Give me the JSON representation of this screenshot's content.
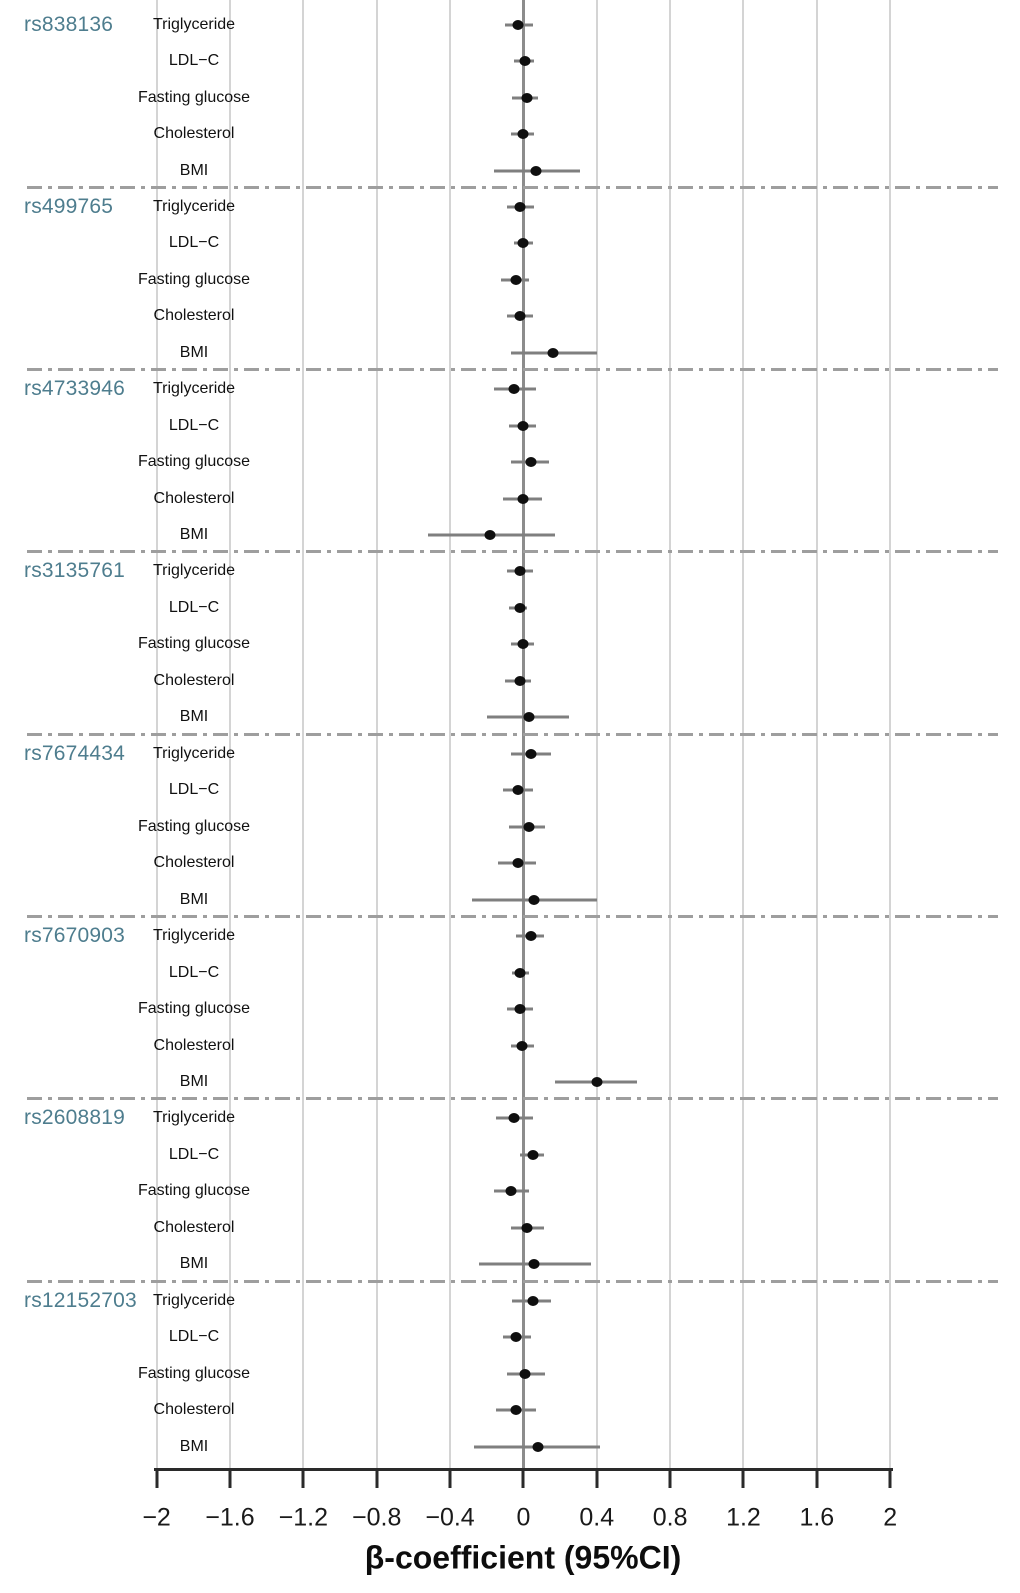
{
  "figure_title": "",
  "chart_data": {
    "type": "forest",
    "xlabel": "β-coefficient (95%CI)",
    "xlim": [
      -2,
      2
    ],
    "x_ticks": [
      -2,
      -1.6,
      -1.2,
      -0.8,
      -0.4,
      0,
      0.4,
      0.8,
      1.2,
      1.6,
      2
    ],
    "x_tick_labels": [
      "−2",
      "−1.6",
      "−1.2",
      "−0.8",
      "−0.4",
      "0",
      "0.4",
      "0.8",
      "1.2",
      "1.6",
      "2"
    ],
    "grid": "vertical-gridlines-at-every-tick",
    "zero_reference_line": 0,
    "traits_order": [
      "Triglyceride",
      "LDL−C",
      "Fasting glucose",
      "Cholesterol",
      "BMI"
    ],
    "groups": [
      {
        "snp": "rs838136",
        "rows": [
          {
            "trait": "Triglyceride",
            "beta": -0.03,
            "ci": [
              -0.1,
              0.05
            ]
          },
          {
            "trait": "LDL−C",
            "beta": 0.01,
            "ci": [
              -0.05,
              0.06
            ]
          },
          {
            "trait": "Fasting glucose",
            "beta": 0.02,
            "ci": [
              -0.06,
              0.08
            ]
          },
          {
            "trait": "Cholesterol",
            "beta": 0.0,
            "ci": [
              -0.07,
              0.06
            ]
          },
          {
            "trait": "BMI",
            "beta": 0.07,
            "ci": [
              -0.16,
              0.31
            ]
          }
        ]
      },
      {
        "snp": "rs499765",
        "rows": [
          {
            "trait": "Triglyceride",
            "beta": -0.02,
            "ci": [
              -0.09,
              0.06
            ]
          },
          {
            "trait": "LDL−C",
            "beta": 0.0,
            "ci": [
              -0.05,
              0.05
            ]
          },
          {
            "trait": "Fasting glucose",
            "beta": -0.04,
            "ci": [
              -0.12,
              0.03
            ]
          },
          {
            "trait": "Cholesterol",
            "beta": -0.02,
            "ci": [
              -0.09,
              0.05
            ]
          },
          {
            "trait": "BMI",
            "beta": 0.16,
            "ci": [
              -0.07,
              0.4
            ]
          }
        ]
      },
      {
        "snp": "rs4733946",
        "rows": [
          {
            "trait": "Triglyceride",
            "beta": -0.05,
            "ci": [
              -0.16,
              0.07
            ]
          },
          {
            "trait": "LDL−C",
            "beta": 0.0,
            "ci": [
              -0.08,
              0.07
            ]
          },
          {
            "trait": "Fasting glucose",
            "beta": 0.04,
            "ci": [
              -0.07,
              0.14
            ]
          },
          {
            "trait": "Cholesterol",
            "beta": 0.0,
            "ci": [
              -0.11,
              0.1
            ]
          },
          {
            "trait": "BMI",
            "beta": -0.18,
            "ci": [
              -0.52,
              0.17
            ]
          }
        ]
      },
      {
        "snp": "rs3135761",
        "rows": [
          {
            "trait": "Triglyceride",
            "beta": -0.02,
            "ci": [
              -0.09,
              0.05
            ]
          },
          {
            "trait": "LDL−C",
            "beta": -0.02,
            "ci": [
              -0.08,
              0.02
            ]
          },
          {
            "trait": "Fasting glucose",
            "beta": 0.0,
            "ci": [
              -0.07,
              0.06
            ]
          },
          {
            "trait": "Cholesterol",
            "beta": -0.02,
            "ci": [
              -0.1,
              0.04
            ]
          },
          {
            "trait": "BMI",
            "beta": 0.03,
            "ci": [
              -0.2,
              0.25
            ]
          }
        ]
      },
      {
        "snp": "rs7674434",
        "rows": [
          {
            "trait": "Triglyceride",
            "beta": 0.04,
            "ci": [
              -0.07,
              0.15
            ]
          },
          {
            "trait": "LDL−C",
            "beta": -0.03,
            "ci": [
              -0.11,
              0.05
            ]
          },
          {
            "trait": "Fasting glucose",
            "beta": 0.03,
            "ci": [
              -0.08,
              0.12
            ]
          },
          {
            "trait": "Cholesterol",
            "beta": -0.03,
            "ci": [
              -0.14,
              0.07
            ]
          },
          {
            "trait": "BMI",
            "beta": 0.06,
            "ci": [
              -0.28,
              0.4
            ]
          }
        ]
      },
      {
        "snp": "rs7670903",
        "rows": [
          {
            "trait": "Triglyceride",
            "beta": 0.04,
            "ci": [
              -0.04,
              0.11
            ]
          },
          {
            "trait": "LDL−C",
            "beta": -0.02,
            "ci": [
              -0.06,
              0.03
            ]
          },
          {
            "trait": "Fasting glucose",
            "beta": -0.02,
            "ci": [
              -0.09,
              0.05
            ]
          },
          {
            "trait": "Cholesterol",
            "beta": -0.01,
            "ci": [
              -0.07,
              0.06
            ]
          },
          {
            "trait": "BMI",
            "beta": 0.4,
            "ci": [
              0.17,
              0.62
            ]
          }
        ]
      },
      {
        "snp": "rs2608819",
        "rows": [
          {
            "trait": "Triglyceride",
            "beta": -0.05,
            "ci": [
              -0.15,
              0.05
            ]
          },
          {
            "trait": "LDL−C",
            "beta": 0.05,
            "ci": [
              -0.02,
              0.11
            ]
          },
          {
            "trait": "Fasting glucose",
            "beta": -0.07,
            "ci": [
              -0.16,
              0.03
            ]
          },
          {
            "trait": "Cholesterol",
            "beta": 0.02,
            "ci": [
              -0.07,
              0.11
            ]
          },
          {
            "trait": "BMI",
            "beta": 0.06,
            "ci": [
              -0.24,
              0.37
            ]
          }
        ]
      },
      {
        "snp": "rs12152703",
        "rows": [
          {
            "trait": "Triglyceride",
            "beta": 0.05,
            "ci": [
              -0.06,
              0.15
            ]
          },
          {
            "trait": "LDL−C",
            "beta": -0.04,
            "ci": [
              -0.11,
              0.04
            ]
          },
          {
            "trait": "Fasting glucose",
            "beta": 0.01,
            "ci": [
              -0.09,
              0.12
            ]
          },
          {
            "trait": "Cholesterol",
            "beta": -0.04,
            "ci": [
              -0.15,
              0.07
            ]
          },
          {
            "trait": "BMI",
            "beta": 0.08,
            "ci": [
              -0.27,
              0.42
            ]
          }
        ]
      }
    ],
    "colors": {
      "snp_label": "#4e7d8e",
      "trait_label": "#111111",
      "point": "#0f0f0f",
      "ci_line": "#7f7f7f",
      "zero_line": "#8c8c8c",
      "gridline": "#d4d4d4",
      "separator": "#9e9e9e",
      "axis": "#2a2a2a"
    },
    "legend": "none"
  }
}
